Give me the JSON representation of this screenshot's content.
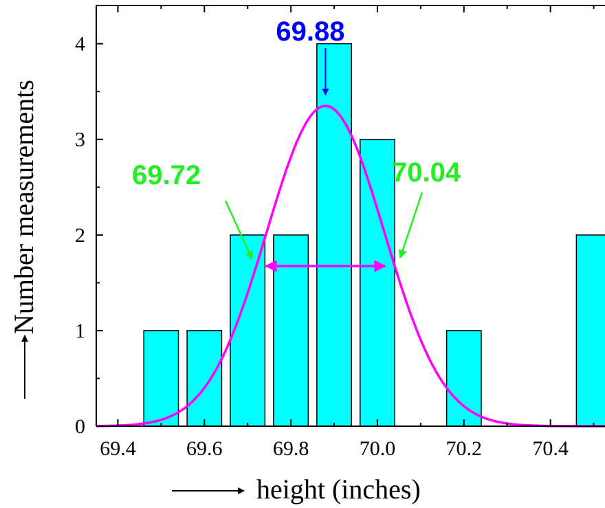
{
  "chart_data": {
    "type": "bar",
    "xlabel": "height (inches)",
    "ylabel": "Number measurements",
    "xlim": [
      69.35,
      70.55
    ],
    "ylim": [
      0,
      4.4
    ],
    "xticks": [
      "69.4",
      "69.6",
      "69.8",
      "70.0",
      "70.2",
      "70.4"
    ],
    "yticks": [
      "0",
      "1",
      "2",
      "3",
      "4"
    ],
    "bins": [
      {
        "x": 69.5,
        "value": 1
      },
      {
        "x": 69.6,
        "value": 1
      },
      {
        "x": 69.7,
        "value": 2
      },
      {
        "x": 69.8,
        "value": 2
      },
      {
        "x": 69.9,
        "value": 4
      },
      {
        "x": 70.0,
        "value": 3
      },
      {
        "x": 70.2,
        "value": 1
      },
      {
        "x": 70.5,
        "value": 2
      }
    ],
    "bin_width": 0.08,
    "gaussian_fit": {
      "mean": 69.88,
      "peak": 3.35,
      "lower_half_point": 69.72,
      "upper_half_point": 70.04
    },
    "annotations": [
      {
        "text": "69.88",
        "color": "#0000ff"
      },
      {
        "text": "69.72",
        "color": "#22ee22"
      },
      {
        "text": "70.04",
        "color": "#22ee22"
      }
    ],
    "bar_color": "#00ffff",
    "curve_color": "#ff00ff",
    "grid": false
  }
}
